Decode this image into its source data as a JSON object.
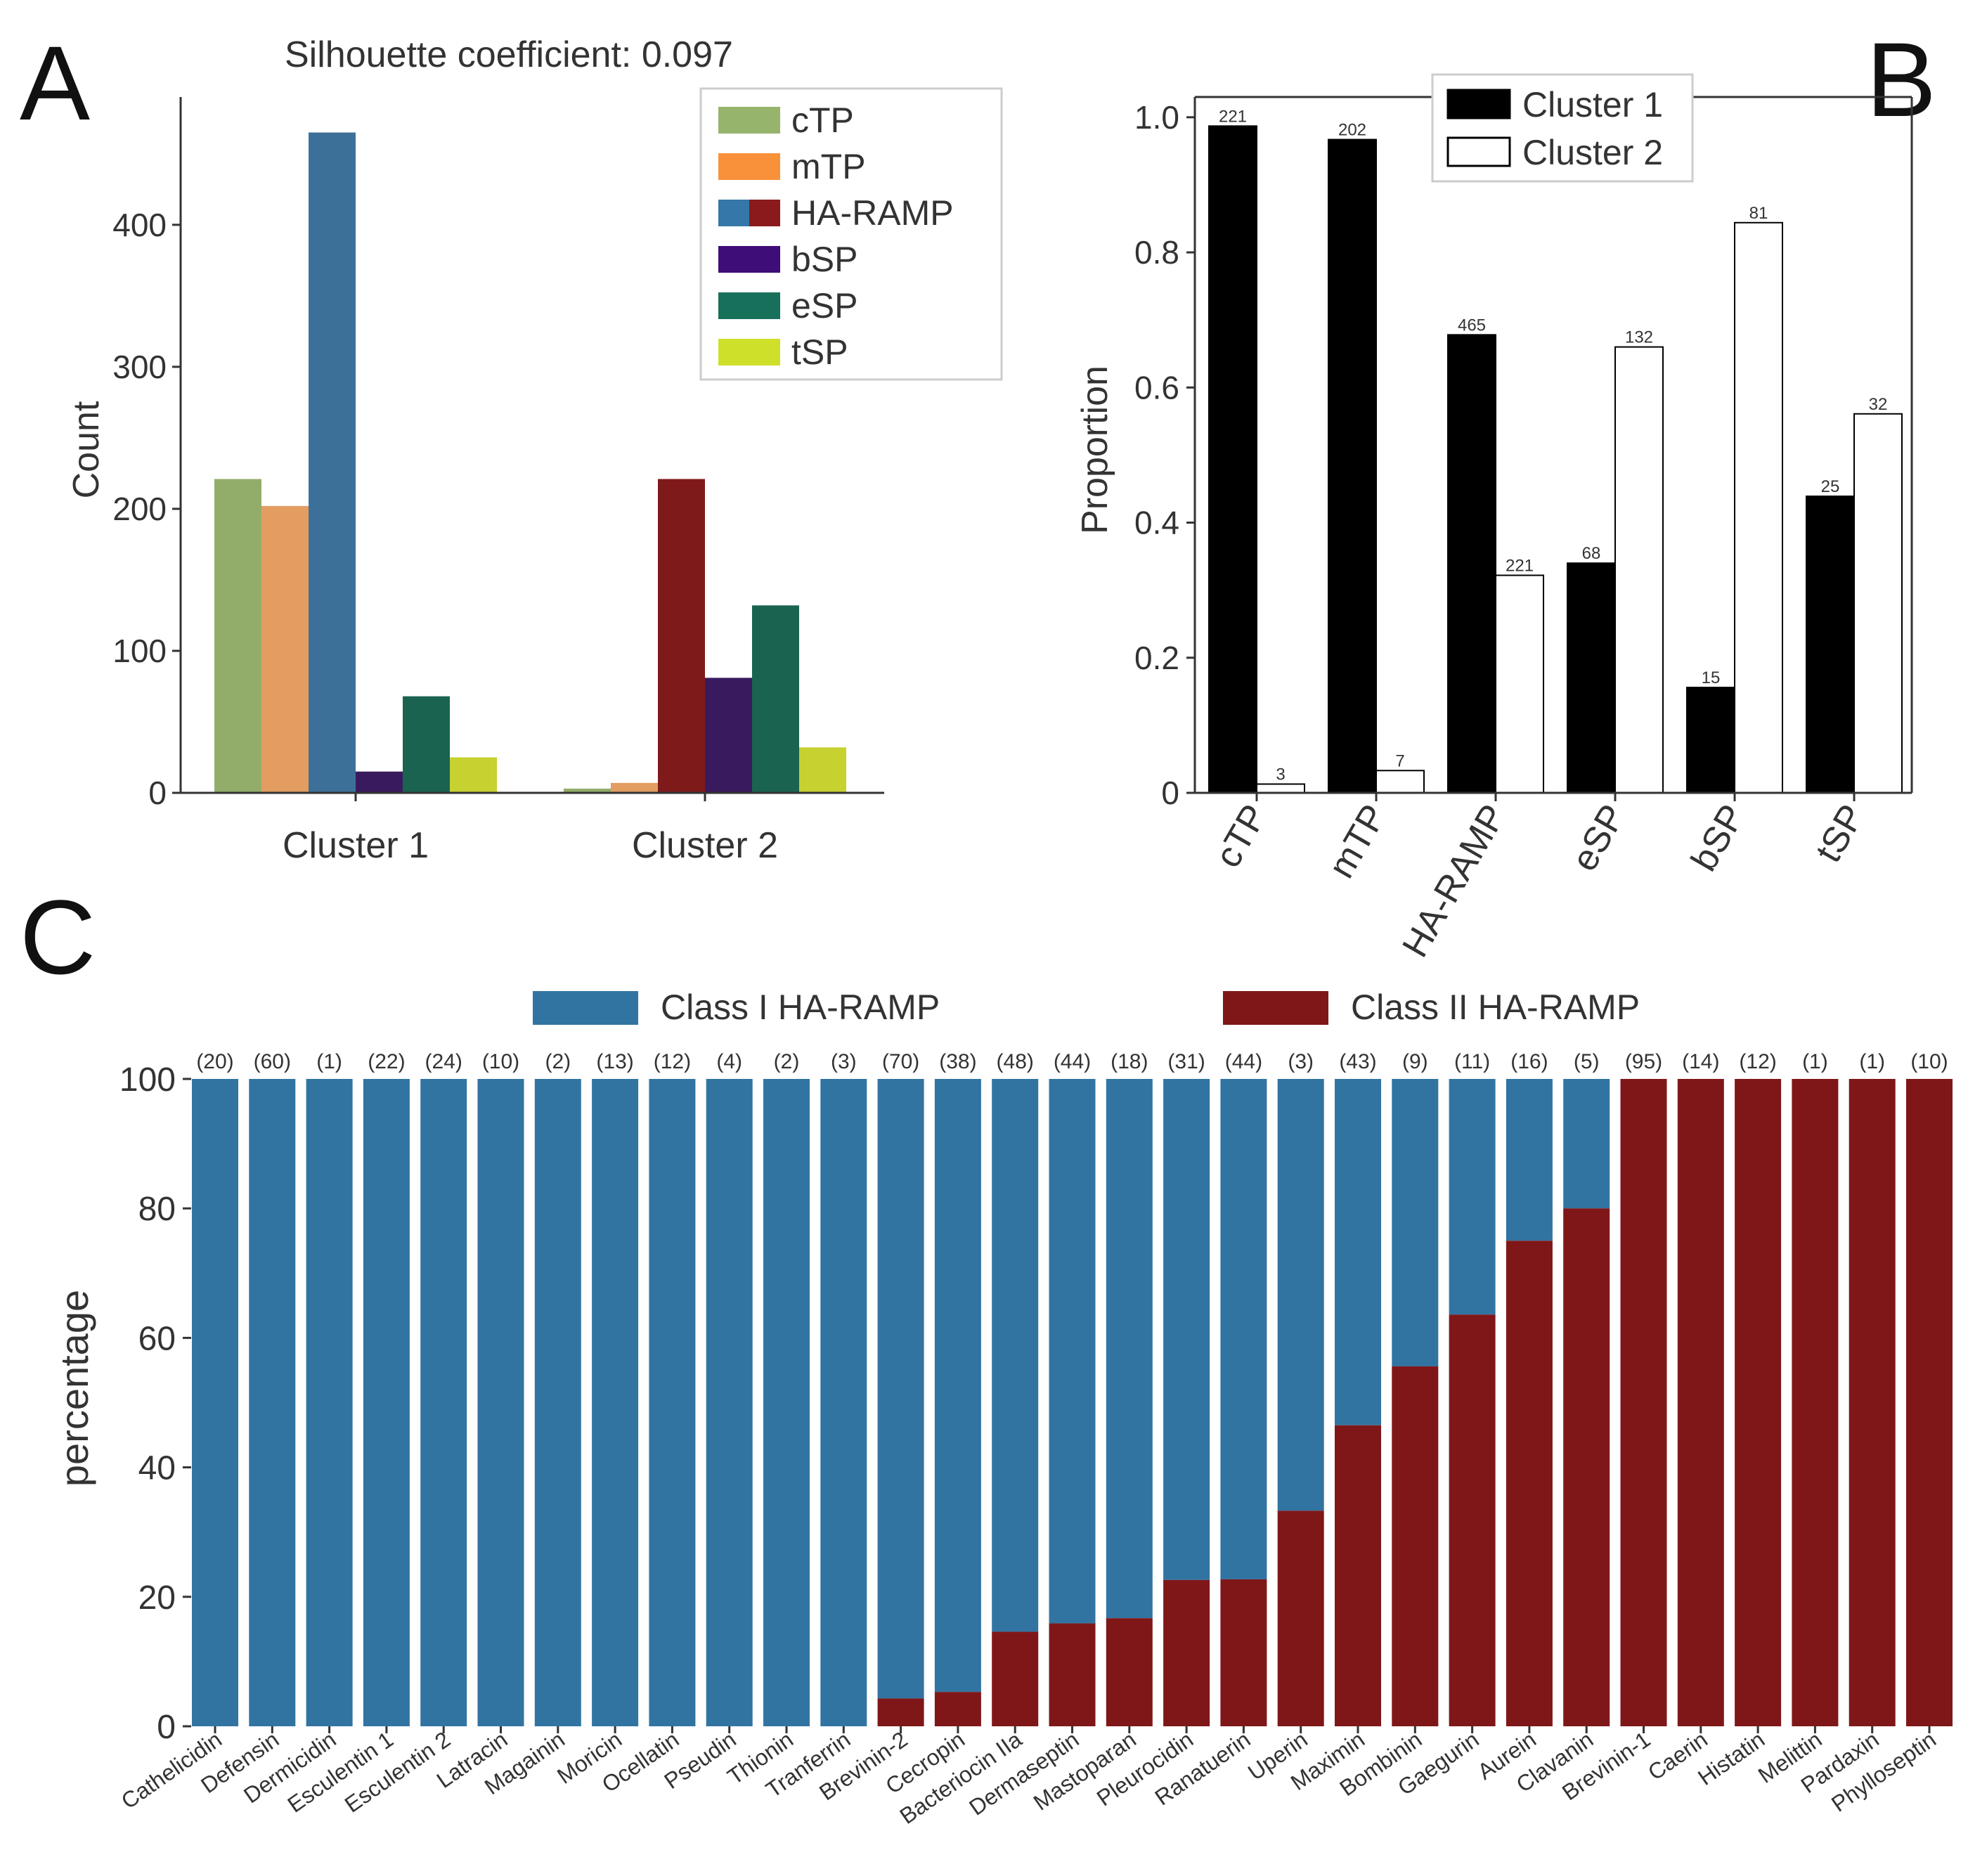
{
  "panels": {
    "a": {
      "letter": "A"
    },
    "b": {
      "letter": "B"
    },
    "c": {
      "letter": "C"
    }
  },
  "chart_data": [
    {
      "id": "A",
      "type": "bar",
      "title": "Silhouette coefficient: 0.097",
      "xlabel": "",
      "ylabel": "Count",
      "ylim": [
        0,
        490
      ],
      "yticks": [
        0,
        100,
        200,
        300,
        400
      ],
      "categories": [
        "Cluster 1",
        "Cluster 2"
      ],
      "legend_position": "top-right",
      "series": [
        {
          "name": "cTP",
          "color": "#92ad6a",
          "values": [
            221,
            3
          ]
        },
        {
          "name": "mTP",
          "color": "#e39d61",
          "values": [
            202,
            7
          ]
        },
        {
          "name": "HA-RAMP",
          "color": "#3d7099",
          "color_alt": "#7f1a1b",
          "values": [
            465,
            221
          ]
        },
        {
          "name": "bSP",
          "color": "#3a1a5e",
          "values": [
            15,
            81
          ]
        },
        {
          "name": "eSP",
          "color": "#1a6350",
          "values": [
            68,
            132
          ]
        },
        {
          "name": "tSP",
          "color": "#c7d130",
          "values": [
            25,
            32
          ]
        }
      ],
      "legend_colors": {
        "cTP": "#97b46c",
        "mTP": "#f9913a",
        "HA-RAMP": [
          "#3477a8",
          "#8a1a1c"
        ],
        "bSP": "#3f0d78",
        "eSP": "#17705a",
        "tSP": "#cfe02a"
      }
    },
    {
      "id": "B",
      "type": "bar",
      "title": "",
      "xlabel": "",
      "ylabel": "Proportion",
      "ylim": [
        0,
        1.03
      ],
      "yticks": [
        0,
        0.2,
        0.4,
        0.6,
        0.8,
        1.0
      ],
      "ytick_labels": [
        "0",
        "0.2",
        "0.4",
        "0.6",
        "0.8",
        "1.0"
      ],
      "categories": [
        "cTP",
        "mTP",
        "HA-RAMP",
        "eSP",
        "bSP",
        "tSP"
      ],
      "legend_position": "top-center",
      "series": [
        {
          "name": "Cluster 1",
          "fill": "#000000",
          "values": [
            0.987,
            0.967,
            0.678,
            0.34,
            0.156,
            0.439
          ],
          "counts": [
            "221",
            "202",
            "465",
            "68",
            "15",
            "25"
          ]
        },
        {
          "name": "Cluster 2",
          "fill": "#ffffff",
          "values": [
            0.013,
            0.033,
            0.322,
            0.66,
            0.844,
            0.561
          ],
          "counts": [
            "3",
            "7",
            "221",
            "132",
            "81",
            "32"
          ]
        }
      ]
    },
    {
      "id": "C",
      "type": "bar",
      "stacked": true,
      "title": "",
      "xlabel": "",
      "ylabel": "percentage",
      "ylim": [
        0,
        100
      ],
      "yticks": [
        0,
        20,
        40,
        60,
        80,
        100
      ],
      "legend_position": "top-center",
      "series": [
        {
          "name": "Class I HA-RAMP",
          "color": "#3274a1"
        },
        {
          "name": "Class II HA-RAMP",
          "color": "#7f1719"
        }
      ],
      "categories": [
        "Cathelicidin",
        "Defensin",
        "Dermicidin",
        "Esculentin 1",
        "Esculentin 2",
        "Latracin",
        "Magainin",
        "Moricin",
        "Ocellatin",
        "Pseudin",
        "Thionin",
        "Tranferrin",
        "Brevinin-2",
        "Cecropin",
        "Bacteriocin IIa",
        "Dermaseptin",
        "Mastoparan",
        "Pleurocidin",
        "Ranatuerin",
        "Uperin",
        "Maximin",
        "Bombinin",
        "Gaegurin",
        "Aurein",
        "Clavanin",
        "Brevinin-1",
        "Caerin",
        "Histatin",
        "Melittin",
        "Pardaxin",
        "Phylloseptin"
      ],
      "counts": [
        "(20)",
        "(60)",
        "(1)",
        "(22)",
        "(24)",
        "(10)",
        "(2)",
        "(13)",
        "(12)",
        "(4)",
        "(2)",
        "(3)",
        "(70)",
        "(38)",
        "(48)",
        "(44)",
        "(18)",
        "(31)",
        "(44)",
        "(3)",
        "(43)",
        "(9)",
        "(11)",
        "(16)",
        "(5)",
        "(95)",
        "(14)",
        "(12)",
        "(1)",
        "(1)",
        "(10)"
      ],
      "class_ii_percent": [
        0,
        0,
        0,
        0,
        0,
        0,
        0,
        0,
        0,
        0,
        0,
        0,
        4.3,
        5.3,
        14.6,
        15.9,
        16.7,
        22.6,
        22.7,
        33.3,
        46.5,
        55.6,
        63.6,
        75.0,
        80.0,
        100,
        100,
        100,
        100,
        100,
        100
      ]
    }
  ]
}
